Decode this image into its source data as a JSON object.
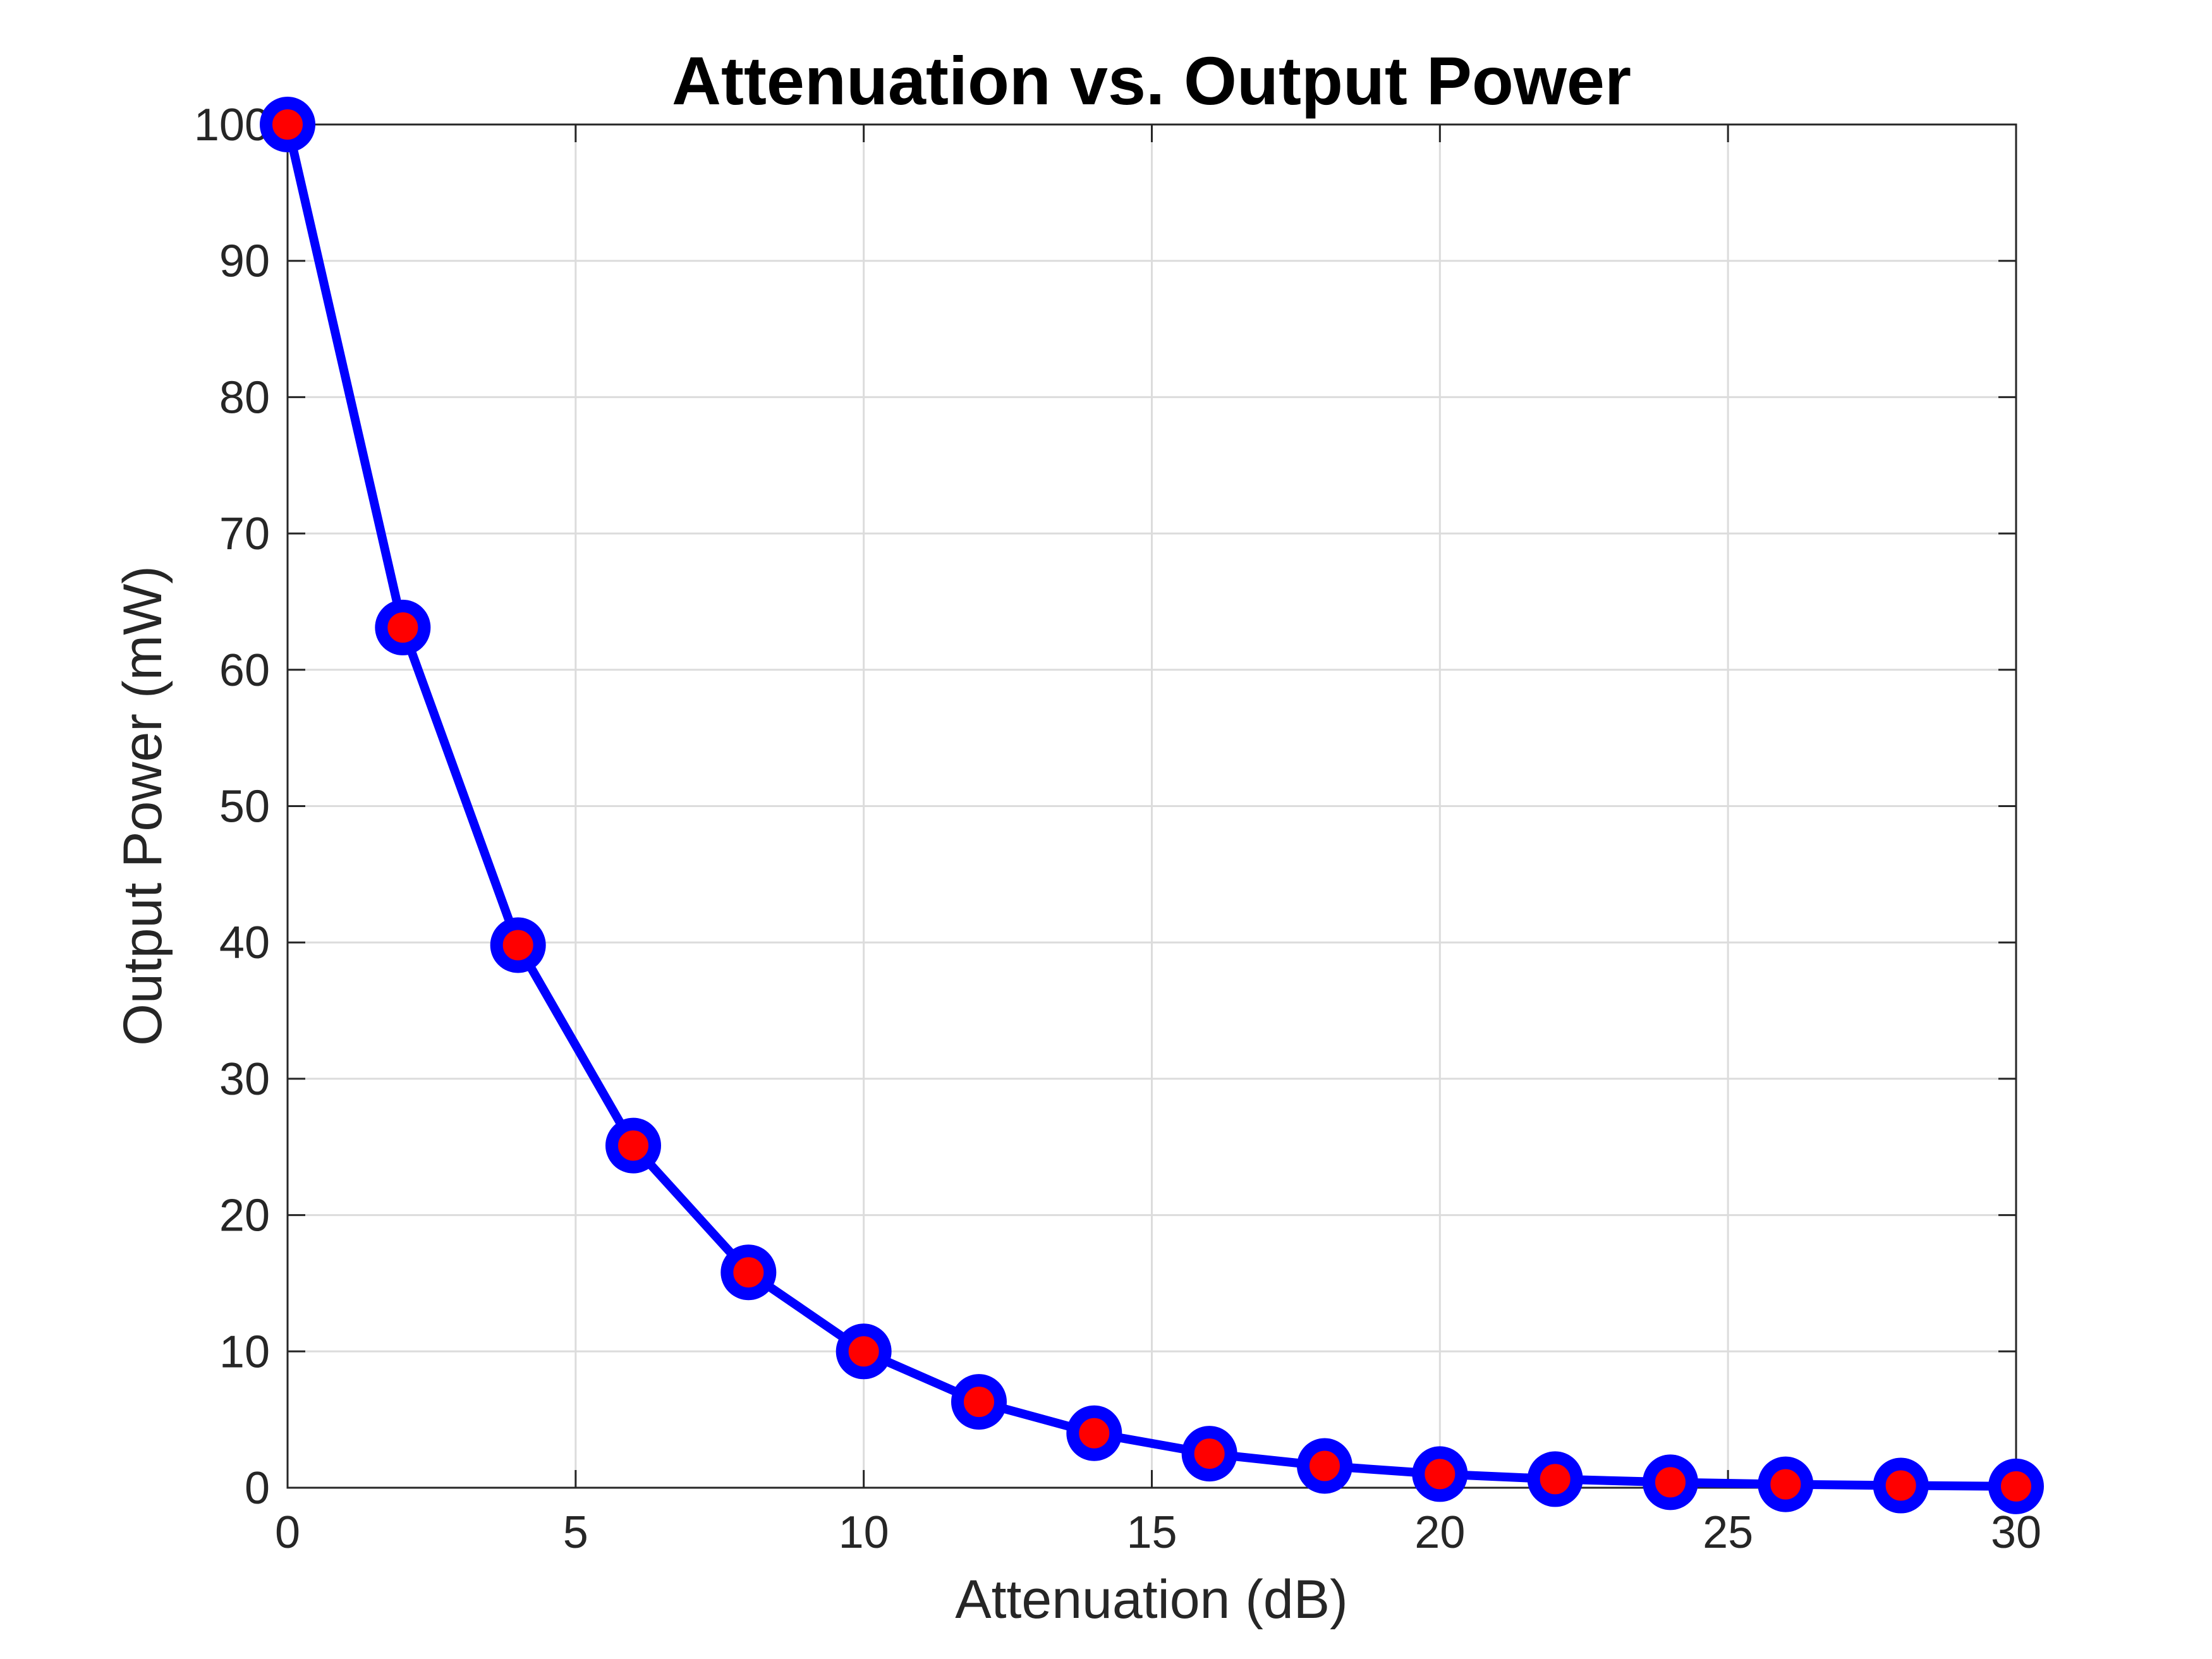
{
  "chart_data": {
    "type": "line",
    "title": "Attenuation vs. Output Power",
    "xlabel": "Attenuation (dB)",
    "ylabel": "Output Power (mW)",
    "xlim": [
      0,
      30
    ],
    "ylim": [
      0,
      100
    ],
    "xticks": [
      0,
      5,
      10,
      15,
      20,
      25,
      30
    ],
    "yticks": [
      0,
      10,
      20,
      30,
      40,
      50,
      60,
      70,
      80,
      90,
      100
    ],
    "grid": true,
    "series": [
      {
        "x": [
          0,
          2,
          4,
          6,
          8,
          10,
          12,
          14,
          16,
          18,
          20,
          22,
          24,
          26,
          28,
          30
        ],
        "y": [
          100,
          63.1,
          39.8,
          25.1,
          15.8,
          10,
          6.3,
          4.0,
          2.5,
          1.6,
          1.0,
          0.63,
          0.4,
          0.25,
          0.16,
          0.1
        ],
        "line_color": "#0000ff",
        "marker_edge_color": "#0000ff",
        "marker_face_color": "#ff0000"
      }
    ]
  }
}
